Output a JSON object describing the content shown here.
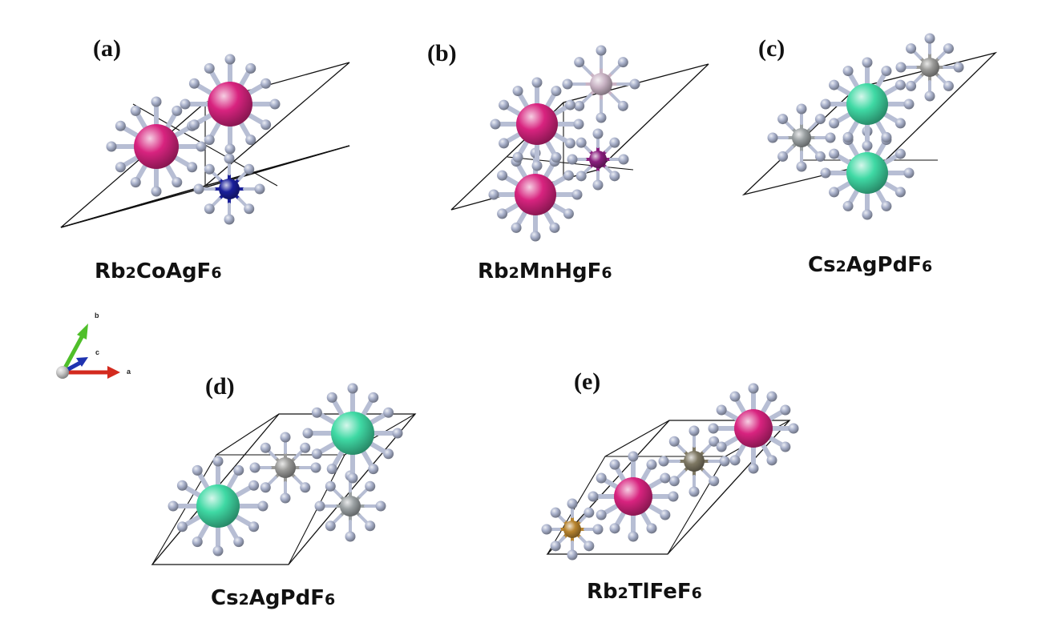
{
  "panels": [
    {
      "letter": "(a)",
      "formula": {
        "el1": "Rb",
        "n1": "2",
        "rest": "CoAgF",
        "n2": "6"
      }
    },
    {
      "letter": "(b)",
      "formula": {
        "el1": "Rb",
        "n1": "2",
        "rest": "MnHgF",
        "n2": "6"
      }
    },
    {
      "letter": "(c)",
      "formula": {
        "el1": "Cs",
        "n1": "2",
        "rest": "AgPdF",
        "n2": "6"
      }
    },
    {
      "letter": "(d)",
      "formula": {
        "el1": "Cs",
        "n1": "2",
        "rest": "AgPdF",
        "n2": "6"
      }
    },
    {
      "letter": "(e)",
      "formula": {
        "el1": "Rb",
        "n1": "2",
        "rest": "TlFeF",
        "n2": "6"
      }
    }
  ],
  "axes": {
    "a": "a",
    "b": "b",
    "c": "c"
  },
  "colors": {
    "fluorine": "#aab2cc",
    "rb": "#d8237f",
    "cs": "#3fd9a4",
    "co": "#1a1f9a",
    "mn": "#8a1f7e",
    "hg": "#c9b3c4",
    "ag": "#9a9a98",
    "pd": "#9aa0a2",
    "tl": "#7e7863",
    "fe": "#b8842e",
    "cell_edge": "#111111",
    "axis_a": "#d32a1e",
    "axis_b": "#4fbf2a",
    "axis_c": "#1f33b0"
  }
}
